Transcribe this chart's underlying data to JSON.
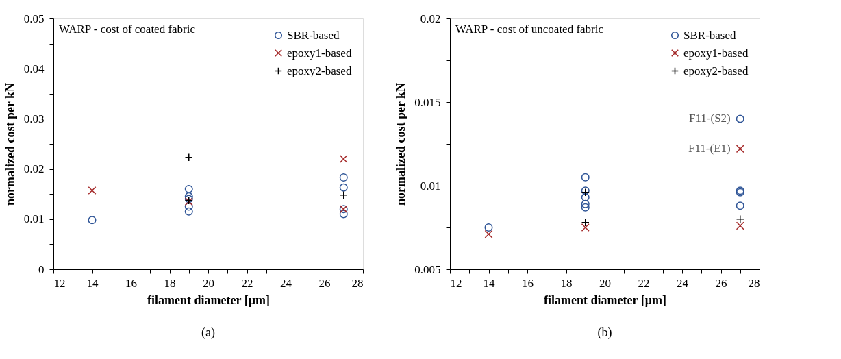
{
  "chart_data": [
    {
      "type": "scatter",
      "title": "WARP - cost of coated fabric",
      "xlabel": "filament diameter [μm]",
      "ylabel": "normalized cost per kN",
      "xlim": [
        12,
        28
      ],
      "xticks": [
        12,
        {
          "value": 13,
          "label": null
        },
        14,
        {
          "value": 15,
          "label": null
        },
        16,
        {
          "value": 17,
          "label": null
        },
        18,
        {
          "value": 19,
          "label": null
        },
        20,
        {
          "value": 21,
          "label": null
        },
        22,
        {
          "value": 23,
          "label": null
        },
        24,
        {
          "value": 25,
          "label": null
        },
        26,
        {
          "value": 27,
          "label": null
        },
        28
      ],
      "ylim": [
        0,
        0.05
      ],
      "yticks": [
        0,
        {
          "value": 0.005,
          "label": null
        },
        0.01,
        {
          "value": 0.015,
          "label": null
        },
        0.02,
        {
          "value": 0.025,
          "label": null
        },
        0.03,
        {
          "value": 0.035,
          "label": null
        },
        0.04,
        {
          "value": 0.045,
          "label": null
        },
        0.05
      ],
      "grid": false,
      "legend": "top right",
      "series": [
        {
          "name": "SBR-based",
          "color": "#2f5597",
          "marker": "circle",
          "x": [
            14,
            19,
            19,
            19,
            19,
            19,
            27,
            27,
            27,
            27
          ],
          "values": [
            0.0098,
            0.016,
            0.0145,
            0.014,
            0.0125,
            0.0115,
            0.0183,
            0.0163,
            0.012,
            0.011
          ]
        },
        {
          "name": "epoxy1-based",
          "color": "#a52a2a",
          "marker": "cross",
          "x": [
            14,
            19,
            27,
            27
          ],
          "values": [
            0.0157,
            0.0135,
            0.022,
            0.012
          ]
        },
        {
          "name": "epoxy2-based",
          "color": "#000000",
          "marker": "plus",
          "x": [
            19,
            19,
            27
          ],
          "values": [
            0.0223,
            0.0137,
            0.0148
          ]
        }
      ],
      "annotations": [
        "(a)"
      ]
    },
    {
      "type": "scatter",
      "title": "WARP - cost of uncoated fabric",
      "xlabel": "filament diameter [μm]",
      "ylabel": "normalized cost per kN",
      "xlim": [
        12,
        28
      ],
      "xticks": [
        12,
        {
          "value": 13,
          "label": null
        },
        14,
        {
          "value": 15,
          "label": null
        },
        16,
        {
          "value": 17,
          "label": null
        },
        18,
        {
          "value": 19,
          "label": null
        },
        20,
        {
          "value": 21,
          "label": null
        },
        22,
        {
          "value": 23,
          "label": null
        },
        24,
        {
          "value": 25,
          "label": null
        },
        26,
        {
          "value": 27,
          "label": null
        },
        28
      ],
      "ylim": [
        0.005,
        0.02
      ],
      "yticks": [
        0.005,
        {
          "value": 0.0075,
          "label": null
        },
        0.01,
        {
          "value": 0.0125,
          "label": null
        },
        0.015,
        {
          "value": 0.0175,
          "label": null
        },
        0.02
      ],
      "grid": false,
      "legend": "top right",
      "series": [
        {
          "name": "SBR-based",
          "color": "#2f5597",
          "marker": "circle",
          "x": [
            14,
            19,
            19,
            19,
            19,
            19,
            27,
            27,
            27,
            27
          ],
          "values": [
            0.0075,
            0.0105,
            0.0097,
            0.0093,
            0.0089,
            0.0087,
            0.014,
            0.0097,
            0.0096,
            0.0088
          ]
        },
        {
          "name": "epoxy1-based",
          "color": "#a52a2a",
          "marker": "cross",
          "x": [
            14,
            19,
            27,
            27
          ],
          "values": [
            0.0071,
            0.0075,
            0.0122,
            0.0076
          ]
        },
        {
          "name": "epoxy2-based",
          "color": "#000000",
          "marker": "plus",
          "x": [
            19,
            19,
            27
          ],
          "values": [
            0.0096,
            0.0078,
            0.008
          ]
        }
      ],
      "annotations": [
        {
          "text": "F11-(S2)",
          "x": 27,
          "y": 0.014
        },
        {
          "text": "F11-(E1)",
          "x": 27,
          "y": 0.0122
        },
        "(b)"
      ]
    }
  ]
}
